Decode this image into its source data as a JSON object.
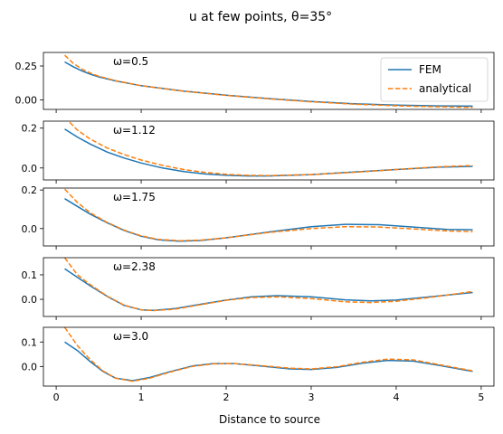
{
  "figure": {
    "title": "u at few points, θ=35°",
    "xlabel": "Distance to source"
  },
  "chart_data": [
    {
      "type": "line",
      "annotation": "ω=0.5",
      "xlim": [
        -0.15,
        5.15
      ],
      "ylim": [
        -0.07,
        0.35
      ],
      "yticks": [
        0.0,
        0.25
      ],
      "ytick_labels": [
        "0.00",
        "0.25"
      ],
      "xticks": [
        0,
        1,
        2,
        3,
        4,
        5
      ],
      "xtick_labels": [],
      "legend": {
        "placement": "top-right",
        "entries": [
          "FEM",
          "analytical"
        ]
      },
      "series": [
        {
          "name": "FEM",
          "color": "#1f77b4",
          "style": "solid",
          "x": [
            0.1,
            0.2,
            0.3,
            0.4,
            0.5,
            0.7,
            1.0,
            1.5,
            2.0,
            2.5,
            3.0,
            3.5,
            4.0,
            4.5,
            4.9
          ],
          "y": [
            0.28,
            0.245,
            0.215,
            0.19,
            0.17,
            0.14,
            0.105,
            0.065,
            0.035,
            0.01,
            -0.012,
            -0.028,
            -0.038,
            -0.044,
            -0.046
          ]
        },
        {
          "name": "analytical",
          "color": "#ff7f0e",
          "style": "dashed",
          "x": [
            0.1,
            0.2,
            0.3,
            0.4,
            0.5,
            0.7,
            1.0,
            1.5,
            2.0,
            2.5,
            3.0,
            3.5,
            4.0,
            4.5,
            4.9
          ],
          "y": [
            0.33,
            0.27,
            0.228,
            0.198,
            0.175,
            0.142,
            0.105,
            0.064,
            0.033,
            0.008,
            -0.014,
            -0.031,
            -0.043,
            -0.051,
            -0.055
          ]
        }
      ]
    },
    {
      "type": "line",
      "annotation": "ω=1.12",
      "xlim": [
        -0.15,
        5.15
      ],
      "ylim": [
        -0.06,
        0.235
      ],
      "yticks": [
        0.0,
        0.2
      ],
      "ytick_labels": [
        "0.0",
        "0.2"
      ],
      "xticks": [
        0,
        1,
        2,
        3,
        4,
        5
      ],
      "xtick_labels": [],
      "series": [
        {
          "name": "FEM",
          "color": "#1f77b4",
          "style": "solid",
          "x": [
            0.1,
            0.25,
            0.4,
            0.6,
            0.8,
            1.0,
            1.25,
            1.5,
            1.75,
            2.0,
            2.25,
            2.5,
            3.0,
            3.5,
            4.0,
            4.5,
            4.9
          ],
          "y": [
            0.195,
            0.155,
            0.12,
            0.08,
            0.05,
            0.025,
            0.0,
            -0.018,
            -0.03,
            -0.037,
            -0.04,
            -0.04,
            -0.033,
            -0.02,
            -0.008,
            0.004,
            0.008
          ]
        },
        {
          "name": "analytical",
          "color": "#ff7f0e",
          "style": "dashed",
          "x": [
            0.1,
            0.25,
            0.4,
            0.6,
            0.8,
            1.0,
            1.25,
            1.5,
            1.75,
            2.0,
            2.25,
            2.5,
            3.0,
            3.5,
            4.0,
            4.5,
            4.9
          ],
          "y": [
            0.255,
            0.19,
            0.145,
            0.1,
            0.067,
            0.04,
            0.013,
            -0.008,
            -0.022,
            -0.032,
            -0.037,
            -0.038,
            -0.033,
            -0.022,
            -0.008,
            0.006,
            0.012
          ]
        }
      ]
    },
    {
      "type": "line",
      "annotation": "ω=1.75",
      "xlim": [
        -0.15,
        5.15
      ],
      "ylim": [
        -0.09,
        0.21
      ],
      "yticks": [
        0.0,
        0.2
      ],
      "ytick_labels": [
        "0.0",
        "0.2"
      ],
      "xticks": [
        0,
        1,
        2,
        3,
        4,
        5
      ],
      "xtick_labels": [],
      "series": [
        {
          "name": "FEM",
          "color": "#1f77b4",
          "style": "solid",
          "x": [
            0.1,
            0.25,
            0.4,
            0.6,
            0.8,
            1.0,
            1.2,
            1.45,
            1.7,
            2.0,
            2.5,
            3.0,
            3.4,
            3.8,
            4.2,
            4.6,
            4.9
          ],
          "y": [
            0.155,
            0.115,
            0.075,
            0.03,
            -0.01,
            -0.04,
            -0.058,
            -0.065,
            -0.062,
            -0.048,
            -0.018,
            0.01,
            0.022,
            0.02,
            0.008,
            -0.004,
            -0.006
          ]
        },
        {
          "name": "analytical",
          "color": "#ff7f0e",
          "style": "dashed",
          "x": [
            0.1,
            0.25,
            0.4,
            0.6,
            0.8,
            1.0,
            1.2,
            1.45,
            1.7,
            2.0,
            2.5,
            3.0,
            3.4,
            3.8,
            4.2,
            4.6,
            4.9
          ],
          "y": [
            0.205,
            0.135,
            0.082,
            0.032,
            -0.008,
            -0.038,
            -0.056,
            -0.063,
            -0.06,
            -0.048,
            -0.02,
            0.0,
            0.01,
            0.008,
            -0.002,
            -0.012,
            -0.016
          ]
        }
      ]
    },
    {
      "type": "line",
      "annotation": "ω=2.38",
      "xlim": [
        -0.15,
        5.15
      ],
      "ylim": [
        -0.07,
        0.17
      ],
      "yticks": [
        0.0,
        0.1
      ],
      "ytick_labels": [
        "0.0",
        "0.1"
      ],
      "xticks": [
        0,
        1,
        2,
        3,
        4,
        5
      ],
      "xtick_labels": [],
      "series": [
        {
          "name": "FEM",
          "color": "#1f77b4",
          "style": "solid",
          "x": [
            0.1,
            0.25,
            0.4,
            0.6,
            0.8,
            1.0,
            1.15,
            1.4,
            1.7,
            2.0,
            2.3,
            2.6,
            3.0,
            3.4,
            3.7,
            4.0,
            4.4,
            4.9
          ],
          "y": [
            0.125,
            0.09,
            0.055,
            0.012,
            -0.025,
            -0.043,
            -0.045,
            -0.038,
            -0.02,
            -0.003,
            0.01,
            0.015,
            0.01,
            -0.002,
            -0.006,
            -0.003,
            0.01,
            0.028
          ]
        },
        {
          "name": "analytical",
          "color": "#ff7f0e",
          "style": "dashed",
          "x": [
            0.1,
            0.25,
            0.4,
            0.6,
            0.8,
            1.0,
            1.15,
            1.4,
            1.7,
            2.0,
            2.3,
            2.6,
            3.0,
            3.4,
            3.7,
            4.0,
            4.4,
            4.9
          ],
          "y": [
            0.17,
            0.1,
            0.06,
            0.013,
            -0.024,
            -0.043,
            -0.046,
            -0.04,
            -0.022,
            -0.004,
            0.007,
            0.01,
            0.003,
            -0.01,
            -0.013,
            -0.008,
            0.008,
            0.032
          ]
        }
      ]
    },
    {
      "type": "line",
      "annotation": "ω=3.0",
      "xlim": [
        -0.15,
        5.15
      ],
      "ylim": [
        -0.08,
        0.16
      ],
      "yticks": [
        0.0,
        0.1
      ],
      "ytick_labels": [
        "0.0",
        "0.1"
      ],
      "xticks": [
        0,
        1,
        2,
        3,
        4,
        5
      ],
      "xtick_labels": [
        "0",
        "1",
        "2",
        "3",
        "4",
        "5"
      ],
      "series": [
        {
          "name": "FEM",
          "color": "#1f77b4",
          "style": "solid",
          "x": [
            0.1,
            0.25,
            0.4,
            0.55,
            0.7,
            0.9,
            1.1,
            1.35,
            1.6,
            1.85,
            2.1,
            2.4,
            2.75,
            3.0,
            3.3,
            3.6,
            3.9,
            4.2,
            4.5,
            4.9
          ],
          "y": [
            0.1,
            0.065,
            0.02,
            -0.02,
            -0.048,
            -0.058,
            -0.045,
            -0.02,
            0.002,
            0.012,
            0.012,
            0.002,
            -0.01,
            -0.012,
            -0.004,
            0.013,
            0.025,
            0.022,
            0.005,
            -0.02
          ]
        },
        {
          "name": "analytical",
          "color": "#ff7f0e",
          "style": "dashed",
          "x": [
            0.1,
            0.25,
            0.4,
            0.55,
            0.7,
            0.9,
            1.1,
            1.35,
            1.6,
            1.85,
            2.1,
            2.4,
            2.75,
            3.0,
            3.3,
            3.6,
            3.9,
            4.2,
            4.5,
            4.9
          ],
          "y": [
            0.16,
            0.085,
            0.028,
            -0.018,
            -0.048,
            -0.06,
            -0.048,
            -0.022,
            0.0,
            0.011,
            0.012,
            0.004,
            -0.007,
            -0.01,
            -0.001,
            0.017,
            0.03,
            0.027,
            0.008,
            -0.018
          ]
        }
      ]
    }
  ]
}
